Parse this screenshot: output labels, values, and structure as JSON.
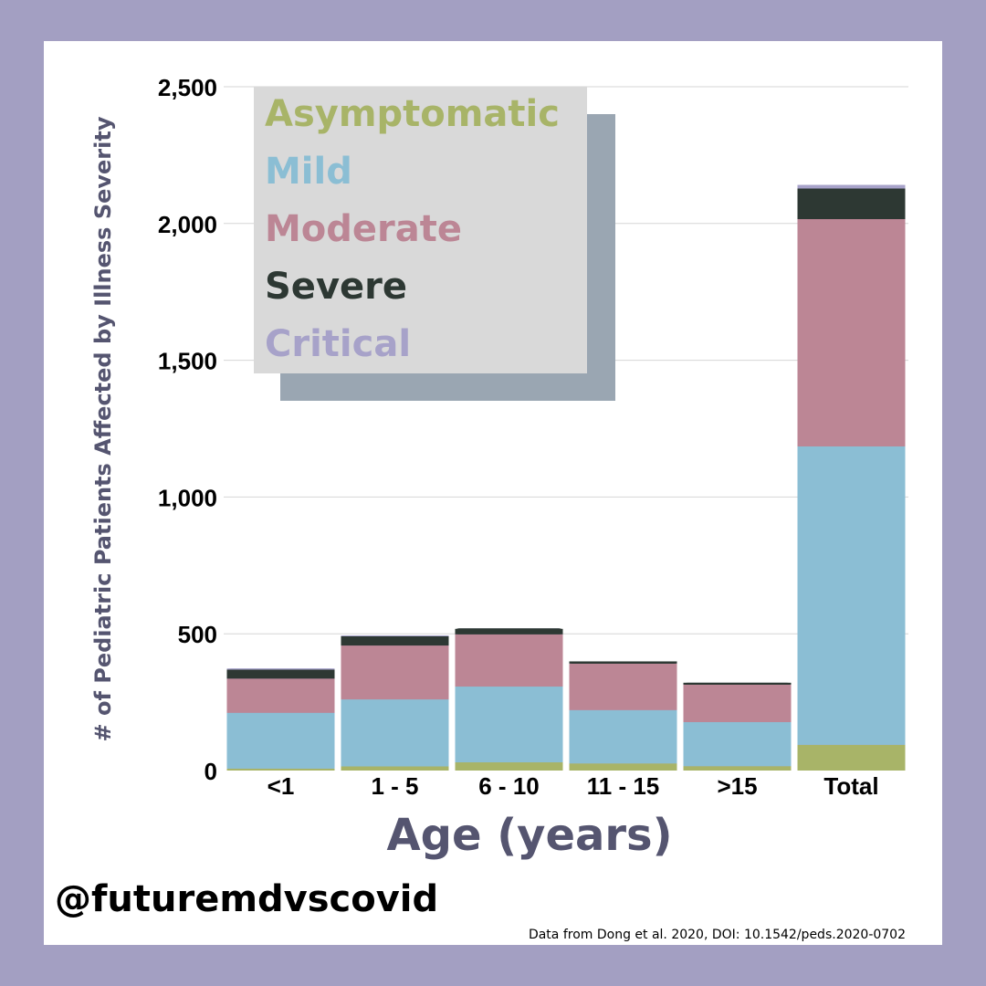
{
  "handle": "@futuremdvscovid",
  "source": "Data from Dong et al. 2020, DOI:  10.1542/peds.2020-0702",
  "colors": {
    "background": "#a39fc2",
    "card": "#ffffff",
    "asymptomatic": "#a8b468",
    "mild": "#8bbed4",
    "moderate": "#bc8695",
    "severe": "#2d3833",
    "critical": "#a7a2c9",
    "axis_title": "#555570",
    "legend_box": "#d9d9d9",
    "legend_shadow": "#9aa6b2"
  },
  "chart_data": {
    "type": "bar",
    "stacked": true,
    "title": "",
    "xlabel": "Age (years)",
    "ylabel": "# of Pediatric Patients Affected by Illness Severity",
    "categories": [
      "<1",
      "1 - 5",
      "6 - 10",
      "11 - 15",
      ">15",
      "Total"
    ],
    "ylim": [
      0,
      2500
    ],
    "yticks": [
      0,
      500,
      1000,
      1500,
      2000,
      2500
    ],
    "ytick_labels": [
      "0",
      "500",
      "1,000",
      "1,500",
      "2,000",
      "2,500"
    ],
    "grid": true,
    "legend_position": "top-left",
    "series": [
      {
        "name": "Asymptomatic",
        "values": [
          7,
          15,
          30,
          26,
          16,
          94
        ]
      },
      {
        "name": "Mild",
        "values": [
          204,
          245,
          277,
          195,
          161,
          1091
        ]
      },
      {
        "name": "Moderate",
        "values": [
          125,
          197,
          191,
          170,
          137,
          831
        ]
      },
      {
        "name": "Severe",
        "values": [
          33,
          34,
          22,
          8,
          7,
          112
        ]
      },
      {
        "name": "Critical",
        "values": [
          4,
          3,
          0,
          0,
          0,
          13
        ]
      }
    ]
  }
}
